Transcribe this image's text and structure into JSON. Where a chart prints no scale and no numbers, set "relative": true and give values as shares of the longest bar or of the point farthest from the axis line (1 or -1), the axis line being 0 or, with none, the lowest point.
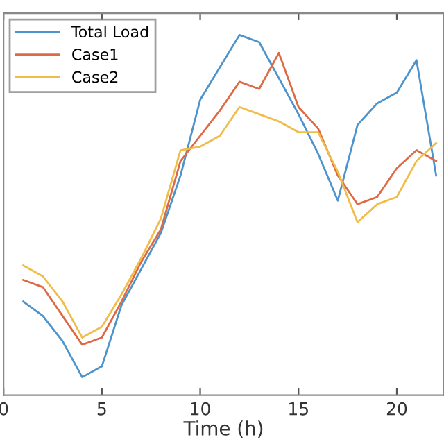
{
  "chart_data": {
    "type": "line",
    "xlabel": "Time (h)",
    "relative": true,
    "x": [
      1,
      2,
      3,
      4,
      5,
      6,
      7,
      8,
      9,
      10,
      11,
      12,
      13,
      14,
      15,
      16,
      17,
      18,
      19,
      20,
      21,
      22
    ],
    "xlim": [
      0,
      22.4
    ],
    "xticks": [
      0,
      5,
      10,
      15,
      20
    ],
    "series": [
      {
        "name": "Total Load",
        "color": "#4d94cc",
        "values": [
          0.26,
          0.22,
          0.15,
          0.05,
          0.08,
          0.25,
          0.35,
          0.45,
          0.61,
          0.82,
          0.91,
          1,
          0.98,
          0.88,
          0.78,
          0.67,
          0.54,
          0.75,
          0.81,
          0.84,
          0.93,
          0.61
        ]
      },
      {
        "name": "Case1",
        "color": "#de6a45",
        "values": [
          0.32,
          0.3,
          0.22,
          0.14,
          0.16,
          0.26,
          0.37,
          0.46,
          0.65,
          0.72,
          0.79,
          0.87,
          0.85,
          0.95,
          0.8,
          0.74,
          0.61,
          0.53,
          0.55,
          0.63,
          0.68,
          0.65
        ]
      },
      {
        "name": "Case2",
        "color": "#f0bc4a",
        "values": [
          0.36,
          0.33,
          0.26,
          0.16,
          0.19,
          0.28,
          0.38,
          0.49,
          0.68,
          0.69,
          0.72,
          0.8,
          0.78,
          0.76,
          0.73,
          0.73,
          0.62,
          0.48,
          0.53,
          0.55,
          0.65,
          0.7
        ]
      }
    ],
    "legend": "top left",
    "grid": false,
    "line_style": "solid",
    "marker": "none"
  }
}
